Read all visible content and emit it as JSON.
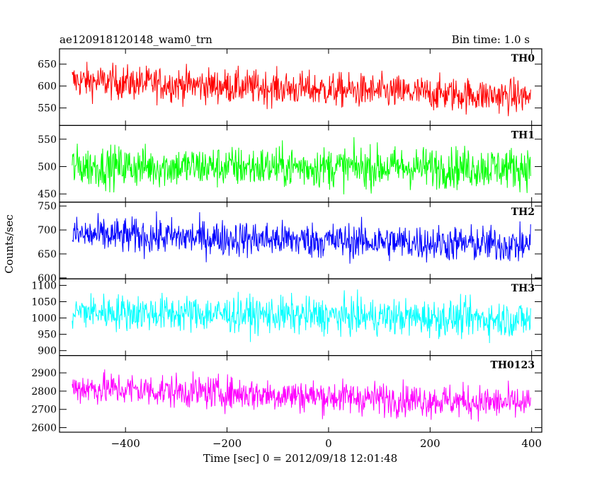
{
  "title_left": "ae120918120148_wam0_trn",
  "title_right": "Bin time: 1.0 s",
  "ylabel": "Counts/sec",
  "xlabel": "Time [sec] 0 = 2012/09/18 12:01:48",
  "chart_data": {
    "type": "line",
    "xlim": [
      -530,
      420
    ],
    "x_ticks": [
      -400,
      -200,
      0,
      200,
      400
    ],
    "x_range_data": [
      -505,
      398
    ],
    "bin_time_sec": 1.0,
    "panels": [
      {
        "name": "TH0",
        "color": "#ff0000",
        "ylim": [
          510,
          685
        ],
        "yticks": [
          550,
          600,
          650
        ],
        "mean_start": 612,
        "mean_end": 575,
        "noise_amplitude": 28,
        "clip": [
          512,
          683
        ]
      },
      {
        "name": "TH1",
        "color": "#00ff00",
        "ylim": [
          435,
          575
        ],
        "yticks": [
          450,
          500,
          550
        ],
        "mean_start": 500,
        "mean_end": 498,
        "noise_amplitude": 27,
        "clip": [
          437,
          573
        ]
      },
      {
        "name": "TH2",
        "color": "#0000ff",
        "ylim": [
          598,
          758
        ],
        "yticks": [
          600,
          650,
          700,
          750
        ],
        "mean_start": 690,
        "mean_end": 668,
        "noise_amplitude": 27,
        "clip": [
          600,
          756
        ]
      },
      {
        "name": "TH3",
        "color": "#00ffff",
        "ylim": [
          885,
          1120
        ],
        "yticks": [
          900,
          950,
          1000,
          1050,
          1100
        ],
        "mean_start": 1020,
        "mean_end": 995,
        "noise_amplitude": 40,
        "clip": [
          887,
          1118
        ]
      },
      {
        "name": "TH0123",
        "color": "#ff00ff",
        "ylim": [
          2575,
          2995
        ],
        "yticks": [
          2600,
          2700,
          2800,
          2900
        ],
        "mean_start": 2820,
        "mean_end": 2730,
        "noise_amplitude": 65,
        "clip": [
          2577,
          2993
        ]
      }
    ]
  }
}
